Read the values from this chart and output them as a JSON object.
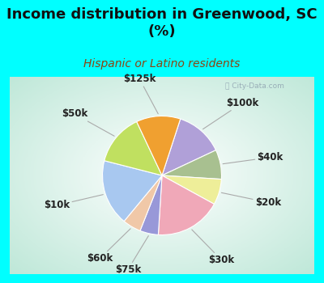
{
  "title": "Income distribution in Greenwood, SC\n(%)",
  "subtitle": "Hispanic or Latino residents",
  "title_color": "#111111",
  "subtitle_color": "#8B4513",
  "background_fig": "#00ffff",
  "watermark": "ⓘ City-Data.com",
  "slices": [
    {
      "label": "$100k",
      "value": 13,
      "color": "#b0a0d8"
    },
    {
      "label": "$40k",
      "value": 8,
      "color": "#a8c090"
    },
    {
      "label": "$20k",
      "value": 7,
      "color": "#eeee99"
    },
    {
      "label": "$30k",
      "value": 18,
      "color": "#f0a8b8"
    },
    {
      "label": "$75k",
      "value": 5,
      "color": "#9898d8"
    },
    {
      "label": "$60k",
      "value": 5,
      "color": "#f0c8a8"
    },
    {
      "label": "$10k",
      "value": 18,
      "color": "#a8c8f0"
    },
    {
      "label": "$50k",
      "value": 14,
      "color": "#c0e060"
    },
    {
      "label": "$125k",
      "value": 12,
      "color": "#f0a030"
    }
  ],
  "label_fontsize": 8.5,
  "title_fontsize": 13,
  "subtitle_fontsize": 10,
  "figsize": [
    4.0,
    3.5
  ],
  "dpi": 100,
  "startangle": 72
}
